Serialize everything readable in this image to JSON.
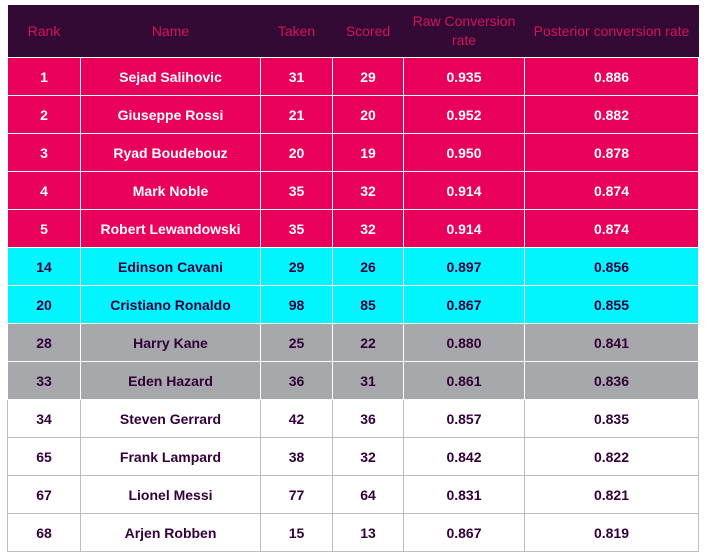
{
  "table": {
    "columns": [
      "Rank",
      "Name",
      "Taken",
      "Scored",
      "Raw Conversion rate",
      "Posterior conversion rate"
    ],
    "rows": [
      {
        "rank": "1",
        "name": "Sejad Salihovic",
        "taken": "31",
        "scored": "29",
        "raw": "0.935",
        "posterior": "0.886",
        "group": "top"
      },
      {
        "rank": "2",
        "name": "Giuseppe Rossi",
        "taken": "21",
        "scored": "20",
        "raw": "0.952",
        "posterior": "0.882",
        "group": "top"
      },
      {
        "rank": "3",
        "name": "Ryad Boudebouz",
        "taken": "20",
        "scored": "19",
        "raw": "0.950",
        "posterior": "0.878",
        "group": "top"
      },
      {
        "rank": "4",
        "name": "Mark Noble",
        "taken": "35",
        "scored": "32",
        "raw": "0.914",
        "posterior": "0.874",
        "group": "top"
      },
      {
        "rank": "5",
        "name": "Robert Lewandowski",
        "taken": "35",
        "scored": "32",
        "raw": "0.914",
        "posterior": "0.874",
        "group": "top"
      },
      {
        "rank": "14",
        "name": "Edinson Cavani",
        "taken": "29",
        "scored": "26",
        "raw": "0.897",
        "posterior": "0.856",
        "group": "cyan"
      },
      {
        "rank": "20",
        "name": "Cristiano Ronaldo",
        "taken": "98",
        "scored": "85",
        "raw": "0.867",
        "posterior": "0.855",
        "group": "cyan"
      },
      {
        "rank": "28",
        "name": "Harry Kane",
        "taken": "25",
        "scored": "22",
        "raw": "0.880",
        "posterior": "0.841",
        "group": "grey"
      },
      {
        "rank": "33",
        "name": "Eden Hazard",
        "taken": "36",
        "scored": "31",
        "raw": "0.861",
        "posterior": "0.836",
        "group": "grey"
      },
      {
        "rank": "34",
        "name": "Steven Gerrard",
        "taken": "42",
        "scored": "36",
        "raw": "0.857",
        "posterior": "0.835",
        "group": "white"
      },
      {
        "rank": "65",
        "name": "Frank Lampard",
        "taken": "38",
        "scored": "32",
        "raw": "0.842",
        "posterior": "0.822",
        "group": "white"
      },
      {
        "rank": "67",
        "name": "Lionel Messi",
        "taken": "77",
        "scored": "64",
        "raw": "0.831",
        "posterior": "0.821",
        "group": "white"
      },
      {
        "rank": "68",
        "name": "Arjen Robben",
        "taken": "15",
        "scored": "13",
        "raw": "0.867",
        "posterior": "0.819",
        "group": "white"
      }
    ]
  },
  "colors": {
    "header_bg": "#330a33",
    "header_text": "#d4135f",
    "top_group": "#e8005a",
    "cyan_group": "#00f5ff",
    "grey_group": "#a6a8ab"
  }
}
